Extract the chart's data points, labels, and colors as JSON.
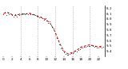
{
  "x_hours": [
    0,
    1,
    2,
    3,
    4,
    5,
    6,
    7,
    8,
    9,
    10,
    11,
    12,
    13,
    14,
    15,
    16,
    17,
    18,
    19,
    20,
    21,
    22,
    23
  ],
  "pressure_red": [
    30.1,
    30.12,
    30.08,
    30.06,
    30.1,
    30.09,
    30.11,
    30.08,
    30.05,
    30.02,
    29.98,
    29.9,
    29.75,
    29.55,
    29.4,
    29.35,
    29.38,
    29.42,
    29.48,
    29.5,
    29.52,
    29.5,
    29.48,
    29.5
  ],
  "scatter_black": [
    [
      0,
      30.09
    ],
    [
      0.3,
      30.13
    ],
    [
      0.7,
      30.07
    ],
    [
      1,
      30.11
    ],
    [
      1.3,
      30.09
    ],
    [
      1.7,
      30.1
    ],
    [
      2,
      30.07
    ],
    [
      2.3,
      30.05
    ],
    [
      2.7,
      30.09
    ],
    [
      3,
      30.05
    ],
    [
      3.3,
      30.08
    ],
    [
      3.7,
      30.07
    ],
    [
      4,
      30.09
    ],
    [
      4.3,
      30.08
    ],
    [
      4.7,
      30.1
    ],
    [
      5,
      30.08
    ],
    [
      5.3,
      30.1
    ],
    [
      5.7,
      30.09
    ],
    [
      6,
      30.1
    ],
    [
      6.3,
      30.08
    ],
    [
      6.7,
      30.09
    ],
    [
      7,
      30.08
    ],
    [
      7.3,
      30.07
    ],
    [
      7.7,
      30.06
    ],
    [
      8,
      30.04
    ],
    [
      8.3,
      30.03
    ],
    [
      8.7,
      30.05
    ],
    [
      9,
      30.02
    ],
    [
      9.3,
      29.99
    ],
    [
      9.7,
      30.01
    ],
    [
      10,
      29.97
    ],
    [
      10.3,
      29.93
    ],
    [
      10.7,
      29.95
    ],
    [
      11,
      29.88
    ],
    [
      11.3,
      29.85
    ],
    [
      11.7,
      29.82
    ],
    [
      12,
      29.73
    ],
    [
      12.3,
      29.65
    ],
    [
      12.7,
      29.6
    ],
    [
      13,
      29.53
    ],
    [
      13.3,
      29.45
    ],
    [
      13.7,
      29.42
    ],
    [
      14,
      29.38
    ],
    [
      14.3,
      29.35
    ],
    [
      14.7,
      29.34
    ],
    [
      15,
      29.33
    ],
    [
      15.3,
      29.35
    ],
    [
      15.7,
      29.37
    ],
    [
      16,
      29.36
    ],
    [
      16.3,
      29.38
    ],
    [
      16.7,
      29.41
    ],
    [
      17,
      29.4
    ],
    [
      17.3,
      29.42
    ],
    [
      17.7,
      29.44
    ],
    [
      18,
      29.46
    ],
    [
      18.3,
      29.47
    ],
    [
      18.7,
      29.48
    ],
    [
      19,
      29.48
    ],
    [
      19.3,
      29.5
    ],
    [
      19.7,
      29.49
    ],
    [
      20,
      29.5
    ],
    [
      20.3,
      29.51
    ],
    [
      20.7,
      29.5
    ],
    [
      21,
      29.48
    ],
    [
      21.3,
      29.49
    ],
    [
      21.7,
      29.47
    ],
    [
      22,
      29.46
    ],
    [
      22.3,
      29.48
    ],
    [
      22.7,
      29.47
    ],
    [
      23,
      29.48
    ]
  ],
  "ylim": [
    29.3,
    30.25
  ],
  "yticks": [
    29.4,
    29.5,
    29.6,
    29.7,
    29.8,
    29.9,
    30.0,
    30.1,
    30.2
  ],
  "ytick_labels": [
    "9.4",
    "9.5",
    "9.6",
    "9.7",
    "9.8",
    "9.9",
    "0.0",
    "0.1",
    "0.2"
  ],
  "xlim": [
    -0.5,
    23.5
  ],
  "xticks": [
    0,
    2,
    4,
    6,
    8,
    10,
    12,
    14,
    16,
    18,
    20,
    22
  ],
  "xtick_labels": [
    "0",
    "2",
    "4",
    "6",
    "8",
    "10",
    "12",
    "14",
    "16",
    "18",
    "20",
    "22"
  ],
  "vgrid_x": [
    4,
    8,
    12,
    16,
    20
  ],
  "bg_color": "#ffffff",
  "red_line_color": "#cc0000",
  "black_dot_color": "#000000",
  "grid_color": "#999999",
  "tick_fontsize": 3.0
}
